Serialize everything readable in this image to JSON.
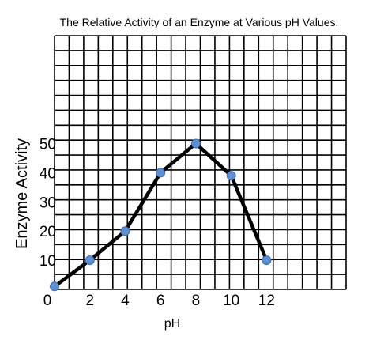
{
  "chart_data": {
    "type": "line",
    "title": "The Relative Activity of an Enzyme at Various pH Values.",
    "xlabel": "pH",
    "ylabel": "Enzyme Activity",
    "x": [
      0,
      2,
      4,
      6,
      8,
      10,
      12
    ],
    "series": [
      {
        "values": [
          1,
          10,
          20,
          40,
          50,
          39,
          10
        ]
      }
    ],
    "x_ticks": [
      "0",
      "2",
      "4",
      "6",
      "8",
      "10",
      "12"
    ],
    "y_ticks": [
      "10",
      "20",
      "30",
      "40",
      "50"
    ],
    "xlim": [
      0,
      16.5
    ],
    "ylim": [
      0,
      87
    ],
    "grid": true,
    "line_color": "#000000",
    "marker_color": "#5b8fd6"
  }
}
